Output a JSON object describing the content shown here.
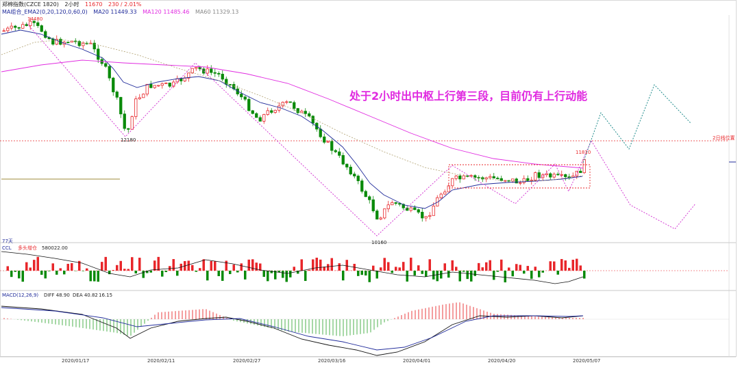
{
  "header": {
    "title": "郑棉指数(CZCE 1820)",
    "period": "2小时",
    "price": "11670",
    "change": "230 / 2.01%"
  },
  "ma_legend": {
    "name": "MA组合_EMA2(0,20,120,0,60,0)",
    "ma20": "MA20 11449.33",
    "ma120": "MA120 11485.46",
    "ma60": "MA60 11329.13"
  },
  "annotation": "处于2小时出中枢上行第三段，目前仍有上行动能",
  "right_label": "2日线位置",
  "price_labels": {
    "high": "14480",
    "low1": "12180",
    "low2": "10160",
    "recent_high": "11810"
  },
  "ccl_panel": {
    "days": "77天",
    "name": "CCL",
    "tag": "多头增仓",
    "value": "580022.00"
  },
  "macd_panel": {
    "name": "MACD(12,26,9)",
    "diff": "DIFF 48.90",
    "dea": "DEA 40.82",
    "macd": "16.15"
  },
  "dates": [
    "2020/01/17",
    "2020/02/11",
    "2020/02/27",
    "2020/03/16",
    "2020/04/01",
    "2020/04/20",
    "2020/05/07"
  ],
  "colors": {
    "up": "#e8262a",
    "down": "#0a8a0a",
    "ma20": "#1f2a9a",
    "ma120": "#e02ae0",
    "ma60": "#b0a070",
    "zig": "#d43ad4",
    "forecast_up": "#1c8a8a",
    "annotation": "#e02ae0",
    "border": "#d8d8d8"
  },
  "chart_data": {
    "type": "candlestick",
    "key_prices": {
      "high": 14480,
      "low_1": 12180,
      "low_2": 10160,
      "recent_high": 11810,
      "last": 11670
    },
    "ma_last": {
      "MA20": 11449.33,
      "MA120": 11485.46,
      "MA60": 11329.13
    },
    "macd_last": {
      "DIFF": 48.9,
      "DEA": 40.82,
      "MACD": 16.15
    },
    "ccl_last": 580022.0,
    "x_dates": [
      "2020/01/17",
      "2020/02/11",
      "2020/02/27",
      "2020/03/16",
      "2020/04/01",
      "2020/04/20",
      "2020/05/07"
    ]
  }
}
